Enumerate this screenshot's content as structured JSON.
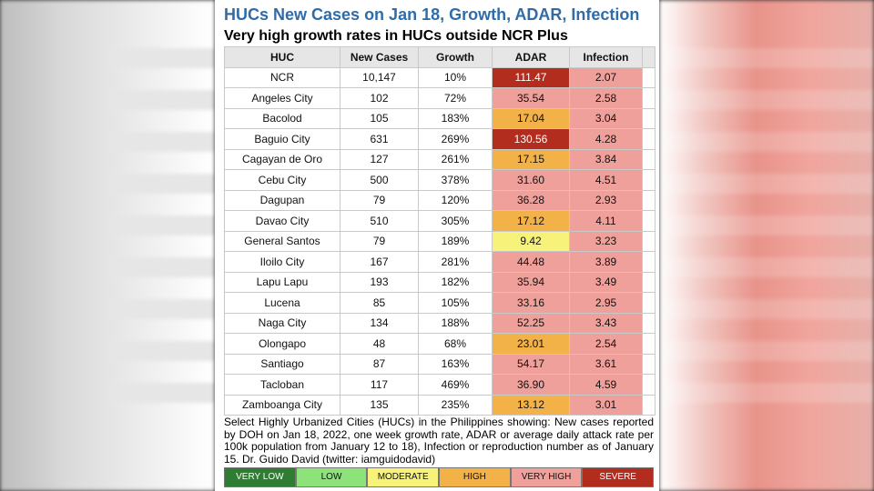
{
  "title": "HUCs New Cases on Jan 18, Growth, ADAR, Infection",
  "subtitle": "Very high growth rates in HUCs outside NCR Plus",
  "headers": [
    "HUC",
    "New Cases",
    "Growth",
    "ADAR",
    "Infection"
  ],
  "rows": [
    {
      "huc": "NCR",
      "cases": "10,147",
      "growth": "10%",
      "adar": "111.47",
      "adar_level": "severe",
      "infection": "2.07",
      "infection_level": "very-high"
    },
    {
      "huc": "Angeles City",
      "cases": "102",
      "growth": "72%",
      "adar": "35.54",
      "adar_level": "very-high",
      "infection": "2.58",
      "infection_level": "very-high"
    },
    {
      "huc": "Bacolod",
      "cases": "105",
      "growth": "183%",
      "adar": "17.04",
      "adar_level": "high",
      "infection": "3.04",
      "infection_level": "very-high"
    },
    {
      "huc": "Baguio City",
      "cases": "631",
      "growth": "269%",
      "adar": "130.56",
      "adar_level": "severe",
      "infection": "4.28",
      "infection_level": "very-high"
    },
    {
      "huc": "Cagayan de Oro",
      "cases": "127",
      "growth": "261%",
      "adar": "17.15",
      "adar_level": "high",
      "infection": "3.84",
      "infection_level": "very-high"
    },
    {
      "huc": "Cebu City",
      "cases": "500",
      "growth": "378%",
      "adar": "31.60",
      "adar_level": "very-high",
      "infection": "4.51",
      "infection_level": "very-high"
    },
    {
      "huc": "Dagupan",
      "cases": "79",
      "growth": "120%",
      "adar": "36.28",
      "adar_level": "very-high",
      "infection": "2.93",
      "infection_level": "very-high"
    },
    {
      "huc": "Davao City",
      "cases": "510",
      "growth": "305%",
      "adar": "17.12",
      "adar_level": "high",
      "infection": "4.11",
      "infection_level": "very-high"
    },
    {
      "huc": "General Santos",
      "cases": "79",
      "growth": "189%",
      "adar": "9.42",
      "adar_level": "moderate",
      "infection": "3.23",
      "infection_level": "very-high"
    },
    {
      "huc": "Iloilo City",
      "cases": "167",
      "growth": "281%",
      "adar": "44.48",
      "adar_level": "very-high",
      "infection": "3.89",
      "infection_level": "very-high"
    },
    {
      "huc": "Lapu Lapu",
      "cases": "193",
      "growth": "182%",
      "adar": "35.94",
      "adar_level": "very-high",
      "infection": "3.49",
      "infection_level": "very-high"
    },
    {
      "huc": "Lucena",
      "cases": "85",
      "growth": "105%",
      "adar": "33.16",
      "adar_level": "very-high",
      "infection": "2.95",
      "infection_level": "very-high"
    },
    {
      "huc": "Naga City",
      "cases": "134",
      "growth": "188%",
      "adar": "52.25",
      "adar_level": "very-high",
      "infection": "3.43",
      "infection_level": "very-high"
    },
    {
      "huc": "Olongapo",
      "cases": "48",
      "growth": "68%",
      "adar": "23.01",
      "adar_level": "high",
      "infection": "2.54",
      "infection_level": "very-high"
    },
    {
      "huc": "Santiago",
      "cases": "87",
      "growth": "163%",
      "adar": "54.17",
      "adar_level": "very-high",
      "infection": "3.61",
      "infection_level": "very-high"
    },
    {
      "huc": "Tacloban",
      "cases": "117",
      "growth": "469%",
      "adar": "36.90",
      "adar_level": "very-high",
      "infection": "4.59",
      "infection_level": "very-high"
    },
    {
      "huc": "Zamboanga City",
      "cases": "135",
      "growth": "235%",
      "adar": "13.12",
      "adar_level": "high",
      "infection": "3.01",
      "infection_level": "very-high"
    }
  ],
  "caption": "Select Highly Urbanized Cities (HUCs) in the Philippines showing: New cases reported by DOH on Jan 18, 2022, one week growth rate, ADAR or average daily attack rate per 100k population from January 12 to 18), Infection or reproduction number as of January 15. Dr. Guido David (twitter: iamguidodavid)",
  "legend": [
    {
      "label": "VERY LOW",
      "level": "very-low",
      "color": "#2e7d32"
    },
    {
      "label": "LOW",
      "level": "low",
      "color": "#8ee27a"
    },
    {
      "label": "MODERATE",
      "level": "moderate",
      "color": "#f7f27a"
    },
    {
      "label": "HIGH",
      "level": "high",
      "color": "#f3b247"
    },
    {
      "label": "VERY HIGH",
      "level": "very-high",
      "color": "#f0a09a"
    },
    {
      "label": "SEVERE",
      "level": "severe",
      "color": "#b32d1f"
    }
  ],
  "colors": {
    "title": "#2f6ca8",
    "header_bg": "#e6e6e6"
  }
}
